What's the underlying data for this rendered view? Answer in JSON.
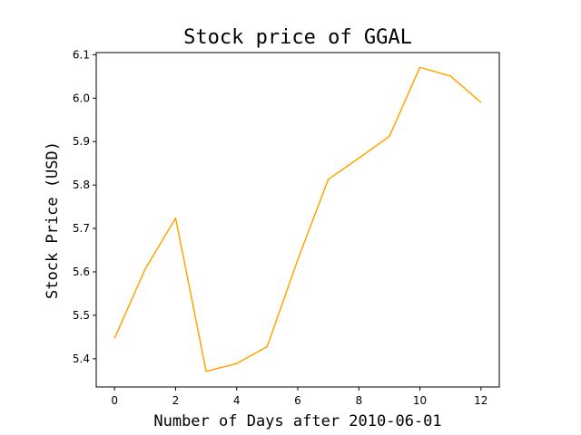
{
  "chart_data": {
    "type": "line",
    "title": "Stock price of GGAL",
    "xlabel": "Number of Days after 2010-06-01",
    "ylabel": "Stock Price (USD)",
    "xlim": [
      -0.6,
      12.6
    ],
    "ylim": [
      5.335,
      6.105
    ],
    "xticks": [
      0,
      2,
      4,
      6,
      8,
      10,
      12
    ],
    "yticks": [
      5.4,
      5.5,
      5.6,
      5.7,
      5.8,
      5.9,
      6.0,
      6.1
    ],
    "ytick_labels": [
      "5.4",
      "5.5",
      "5.6",
      "5.7",
      "5.8",
      "5.9",
      "6.0",
      "6.1"
    ],
    "grid": false,
    "series": [
      {
        "color": "#FFA500",
        "x": [
          0,
          1,
          2,
          3,
          4,
          5,
          6,
          7,
          8,
          9,
          10,
          11,
          12
        ],
        "y": [
          5.447,
          5.606,
          5.724,
          5.371,
          5.389,
          5.428,
          5.628,
          5.813,
          5.862,
          5.912,
          6.071,
          6.051,
          5.99
        ]
      }
    ]
  }
}
